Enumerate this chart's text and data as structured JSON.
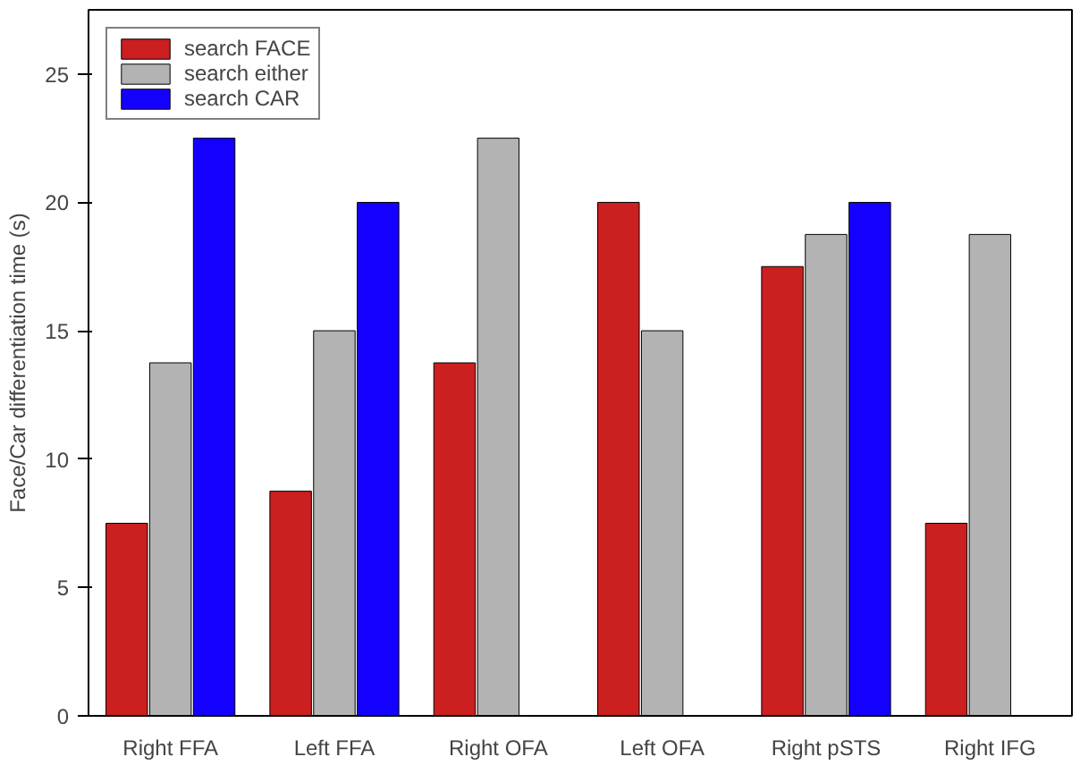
{
  "chart_data": {
    "type": "bar",
    "ylabel": "Face/Car differentiation time (s)",
    "categories": [
      "Right FFA",
      "Left FFA",
      "Right OFA",
      "Left OFA",
      "Right pSTS",
      "Right IFG"
    ],
    "series": [
      {
        "name": "search FACE",
        "color": "#cc1f1f",
        "values": [
          7.5,
          8.75,
          13.75,
          20,
          17.5,
          7.5
        ]
      },
      {
        "name": "search either",
        "color": "#b3b3b3",
        "values": [
          13.75,
          15,
          22.5,
          15,
          18.75,
          18.75
        ]
      },
      {
        "name": "search CAR",
        "color": "#1400ff",
        "values": [
          22.5,
          20,
          null,
          null,
          20,
          null
        ]
      }
    ],
    "ylim": [
      0,
      27.5
    ],
    "yticks": [
      0,
      5,
      10,
      15,
      20,
      25
    ],
    "grid": false,
    "legend": "top left"
  }
}
